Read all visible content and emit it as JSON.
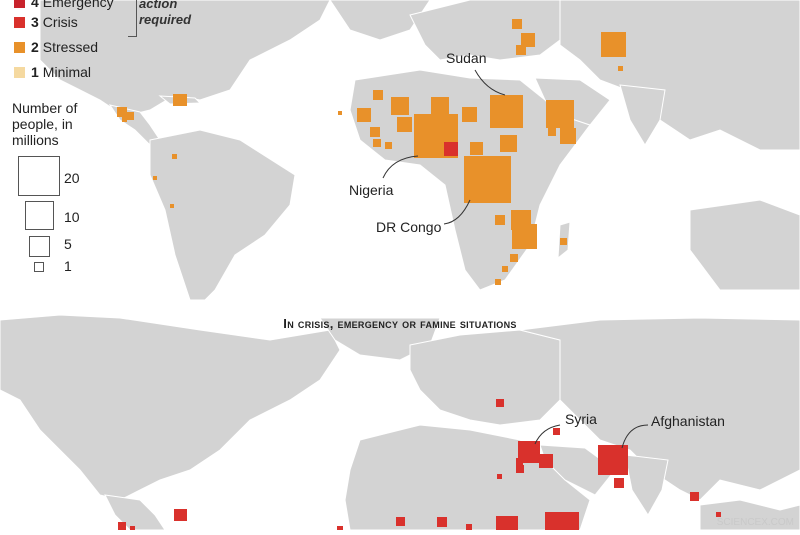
{
  "legend": {
    "categories": [
      {
        "level": "4",
        "label": "Emergency",
        "color": "#c8232c"
      },
      {
        "level": "3",
        "label": "Crisis",
        "color": "#d9312c"
      },
      {
        "level": "2",
        "label": "Stressed",
        "color": "#e8912a"
      },
      {
        "level": "1",
        "label": "Minimal",
        "color": "#f5d9a0"
      }
    ],
    "action_label": "action required",
    "size_title": "Number of people, in millions",
    "sizes": [
      "20",
      "10",
      "5",
      "1"
    ]
  },
  "section_title": "In crisis, emergency or famine situations",
  "top_map": {
    "callouts": {
      "sudan": "Sudan",
      "nigeria": "Nigeria",
      "drc": "DR Congo"
    }
  },
  "bottom_map": {
    "callouts": {
      "syria": "Syria",
      "afghanistan": "Afghanistan"
    }
  },
  "credit": "SCIENCEX.COM",
  "colors": {
    "land": "#d3d3d3",
    "water": "#ffffff",
    "stressed": "#e8912a",
    "crisis": "#d9312c"
  }
}
